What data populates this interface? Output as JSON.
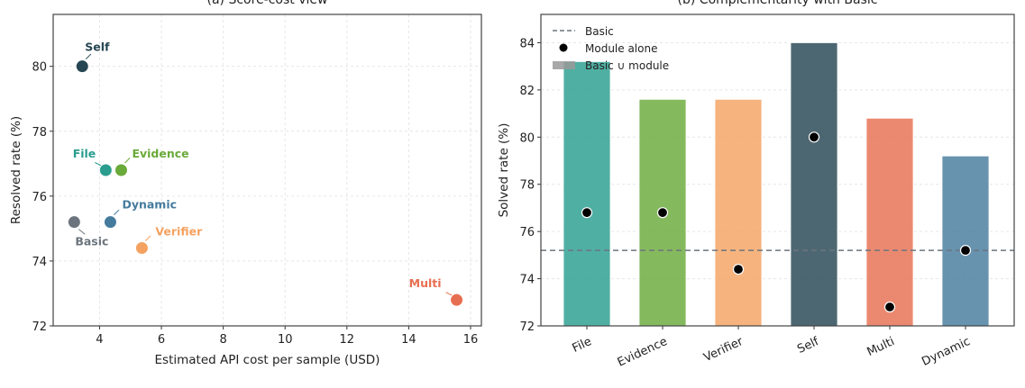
{
  "chart_data": [
    {
      "type": "scatter",
      "title": "(a) Score-cost view",
      "xlabel": "Estimated API cost per sample (USD)",
      "ylabel": "Resolved rate (%)",
      "xlim": [
        2.5,
        16.35
      ],
      "ylim": [
        72,
        81.6
      ],
      "xticks": [
        4,
        6,
        8,
        10,
        12,
        14,
        16
      ],
      "yticks": [
        72,
        74,
        76,
        78,
        80
      ],
      "grid": true,
      "points": [
        {
          "label": "Self",
          "x": 3.44,
          "y": 80.0,
          "color": "#264653",
          "label_pos": "above-right"
        },
        {
          "label": "File",
          "x": 4.2,
          "y": 76.8,
          "color": "#2a9d8f",
          "label_pos": "above-left"
        },
        {
          "label": "Evidence",
          "x": 4.7,
          "y": 76.8,
          "color": "#6aaa3a",
          "label_pos": "above-right"
        },
        {
          "label": "Basic",
          "x": 3.18,
          "y": 75.2,
          "color": "#6c757d",
          "label_pos": "below"
        },
        {
          "label": "Dynamic",
          "x": 4.35,
          "y": 75.2,
          "color": "#457b9d",
          "label_pos": "above-right"
        },
        {
          "label": "Verifier",
          "x": 5.37,
          "y": 74.4,
          "color": "#f4a261",
          "label_pos": "above-right"
        },
        {
          "label": "Multi",
          "x": 15.55,
          "y": 72.8,
          "color": "#e76f51",
          "label_pos": "above-left"
        }
      ]
    },
    {
      "type": "bar",
      "title": "(b) Complementarity with Basic",
      "xlabel": "",
      "ylabel": "Solved rate (%)",
      "ylim": [
        72,
        85.2
      ],
      "yticks": [
        72,
        74,
        76,
        78,
        80,
        82,
        84
      ],
      "grid": true,
      "legend_position": "top-left",
      "categories": [
        "File",
        "Evidence",
        "Verifier",
        "Self",
        "Multi",
        "Dynamic"
      ],
      "colors": [
        "#2a9d8f",
        "#6aaa3a",
        "#f4a261",
        "#264653",
        "#e76f51",
        "#457b9d"
      ],
      "series": [
        {
          "name": "Basic ∪ module",
          "type": "bar",
          "values": [
            83.2,
            81.6,
            81.6,
            84.0,
            80.8,
            79.2
          ]
        },
        {
          "name": "Module alone",
          "type": "scatter",
          "values": [
            76.8,
            76.8,
            74.4,
            80.0,
            72.8,
            75.2
          ]
        }
      ],
      "reference_line": {
        "name": "Basic",
        "value": 75.2,
        "color": "#6c757d",
        "style": "dashed"
      }
    }
  ]
}
